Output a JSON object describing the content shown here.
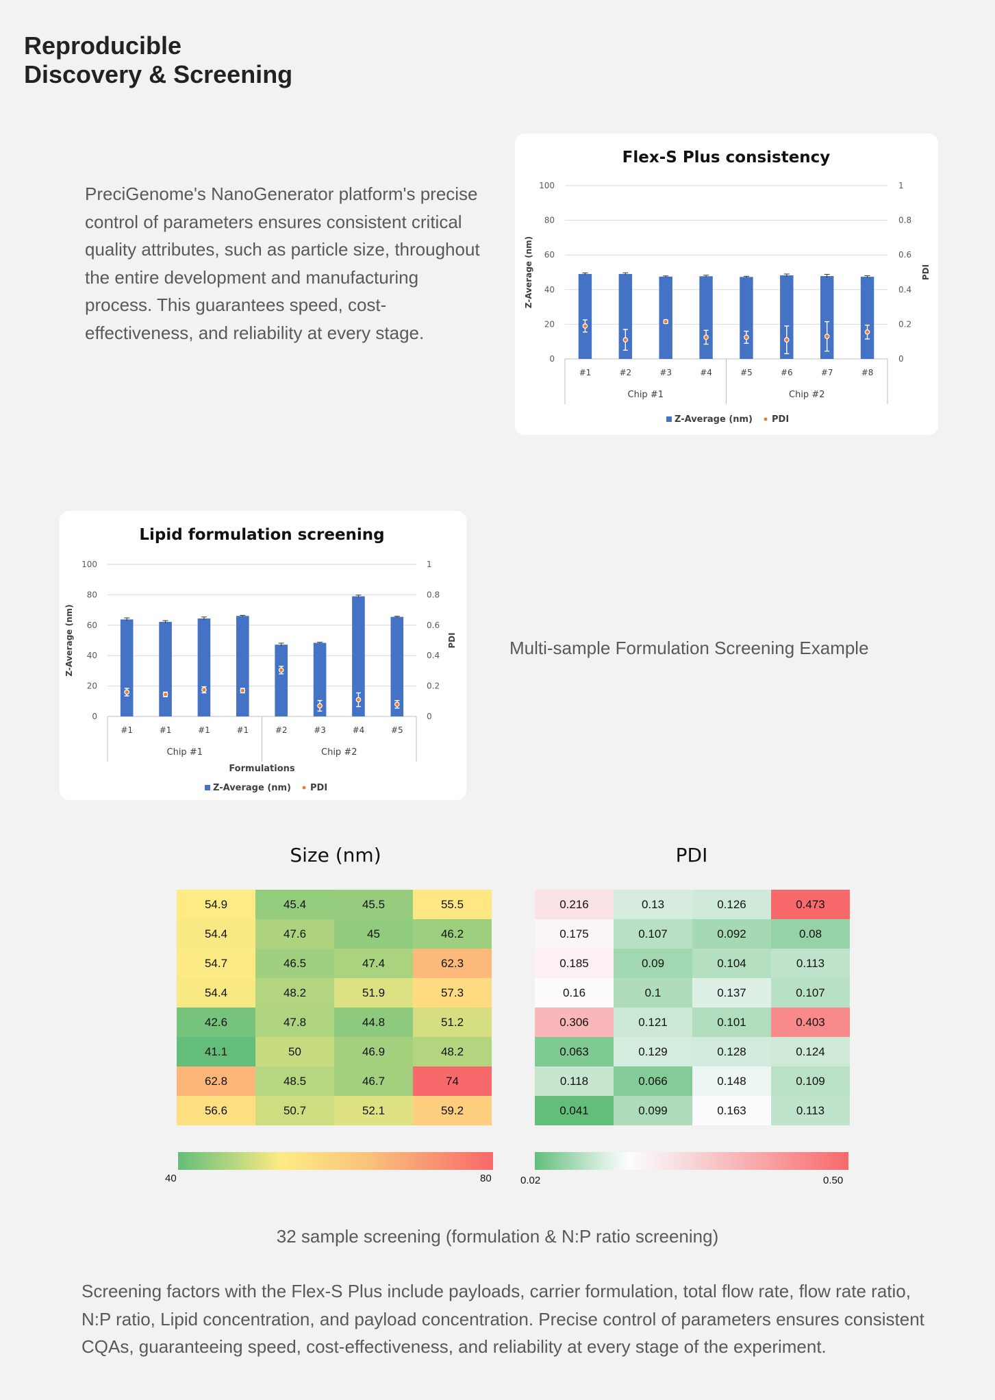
{
  "heading": {
    "line1": "Reproducible",
    "line2": "Discovery & Screening"
  },
  "intro_text": "PreciGenome's NanoGenerator platform's precise control of parameters ensures consistent critical quality attributes, such as particle size, throughout the entire development and manufacturing process. This guarantees speed, cost-effectiveness, and reliability at every stage.",
  "captions": {
    "multi_sample": "Multi-sample Formulation Screening Example",
    "screening_32": "32 sample screening (formulation & N:P ratio screening)"
  },
  "footer_text": "Screening factors with the Flex-S Plus include payloads, carrier formulation, total flow rate, flow rate ratio, N:P ratio, Lipid concentration, and payload concentration. Precise control of parameters ensures consistent CQAs, guaranteeing speed, cost-effectiveness, and reliability at every stage of the experiment.",
  "colors": {
    "bar": "#4472c4",
    "pdi_dot": "#ed7d31",
    "size_low": "#63be7b",
    "size_mid": "#ffeb84",
    "size_high": "#f8696b",
    "pdi_neutral": "#fcfcff"
  },
  "chart_data": [
    {
      "type": "bar",
      "title": "Flex-S Plus consistency",
      "categories": [
        "#1",
        "#2",
        "#3",
        "#4",
        "#5",
        "#6",
        "#7",
        "#8"
      ],
      "groups": [
        {
          "label": "Chip #1",
          "count": 4
        },
        {
          "label": "Chip #2",
          "count": 4
        }
      ],
      "xlabel": "",
      "ylabel": "Z-Average (nm)",
      "y2label": "PDI",
      "ylim": [
        0,
        100
      ],
      "yticks": [
        0,
        20,
        40,
        60,
        80,
        100
      ],
      "y2lim": [
        0,
        1
      ],
      "y2ticks": [
        "0",
        "0.2",
        "0.4",
        "0.6",
        "0.8",
        "1"
      ],
      "series": [
        {
          "name": "Z-Average (nm)",
          "axis": "left",
          "kind": "bar",
          "values": [
            49,
            49,
            47.5,
            47.7,
            47.3,
            48.2,
            47.8,
            47.4
          ],
          "errors": [
            0.6,
            0.7,
            0.4,
            0.6,
            0.4,
            0.8,
            1.0,
            0.6
          ]
        },
        {
          "name": "PDI",
          "axis": "right",
          "kind": "point",
          "values": [
            0.19,
            0.11,
            0.215,
            0.125,
            0.125,
            0.11,
            0.13,
            0.155
          ],
          "errors": [
            0.035,
            0.06,
            0.01,
            0.04,
            0.035,
            0.08,
            0.085,
            0.04
          ]
        }
      ]
    },
    {
      "type": "bar",
      "title": "Lipid formulation screening",
      "categories": [
        "#1",
        "#1",
        "#1",
        "#1",
        "#2",
        "#3",
        "#4",
        "#5"
      ],
      "groups": [
        {
          "label": "Chip #1",
          "count": 4
        },
        {
          "label": "Chip #2",
          "count": 4
        }
      ],
      "xlabel": "Formulations",
      "ylabel": "Z-Average (nm)",
      "y2label": "PDI",
      "ylim": [
        0,
        100
      ],
      "yticks": [
        0,
        20,
        40,
        60,
        80,
        100
      ],
      "y2lim": [
        0,
        1
      ],
      "y2ticks": [
        "0",
        "0.2",
        "0.4",
        "0.6",
        "0.8",
        "1"
      ],
      "series": [
        {
          "name": "Z-Average (nm)",
          "axis": "left",
          "kind": "bar",
          "values": [
            63.8,
            62.2,
            64.4,
            66.1,
            47.2,
            48.4,
            79,
            65.5
          ],
          "errors": [
            1.0,
            0.8,
            1.0,
            0.4,
            1.0,
            0.4,
            0.8,
            0.4
          ]
        },
        {
          "name": "PDI",
          "axis": "right",
          "kind": "point",
          "values": [
            0.16,
            0.145,
            0.175,
            0.17,
            0.305,
            0.07,
            0.11,
            0.08
          ],
          "errors": [
            0.025,
            0.015,
            0.02,
            0.015,
            0.025,
            0.035,
            0.045,
            0.025
          ]
        }
      ]
    },
    {
      "type": "heatmap",
      "title": "Size (nm)",
      "scale": {
        "min": 40,
        "max": 80,
        "min_label": "40",
        "max_label": "80"
      },
      "rows": [
        [
          "54.9",
          "45.4",
          "45.5",
          "55.5"
        ],
        [
          "54.4",
          "47.6",
          "45",
          "46.2"
        ],
        [
          "54.7",
          "46.5",
          "47.4",
          "62.3"
        ],
        [
          "54.4",
          "48.2",
          "51.9",
          "57.3"
        ],
        [
          "42.6",
          "47.8",
          "44.8",
          "51.2"
        ],
        [
          "41.1",
          "50",
          "46.9",
          "48.2"
        ],
        [
          "62.8",
          "48.5",
          "46.7",
          "74"
        ],
        [
          "56.6",
          "50.7",
          "52.1",
          "59.2"
        ]
      ]
    },
    {
      "type": "heatmap",
      "title": "PDI",
      "scale": {
        "min": 0.02,
        "max": 0.5,
        "min_label": "0.02",
        "max_label": "0.50"
      },
      "rows": [
        [
          "0.216",
          "0.13",
          "0.126",
          "0.473"
        ],
        [
          "0.175",
          "0.107",
          "0.092",
          "0.08"
        ],
        [
          "0.185",
          "0.09",
          "0.104",
          "0.113"
        ],
        [
          "0.16",
          "0.1",
          "0.137",
          "0.107"
        ],
        [
          "0.306",
          "0.121",
          "0.101",
          "0.403"
        ],
        [
          "0.063",
          "0.129",
          "0.128",
          "0.124"
        ],
        [
          "0.118",
          "0.066",
          "0.148",
          "0.109"
        ],
        [
          "0.041",
          "0.099",
          "0.163",
          "0.113"
        ]
      ]
    }
  ]
}
